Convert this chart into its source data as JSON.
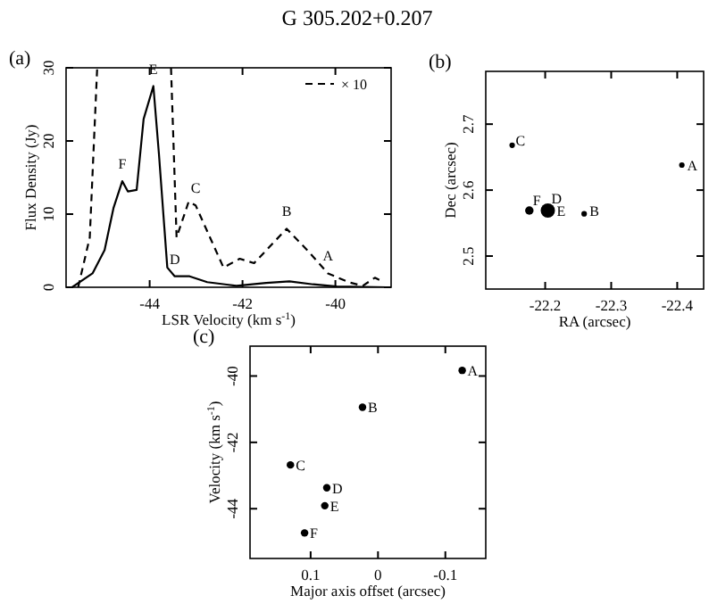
{
  "chart_data": [
    {
      "type": "line",
      "title": "G 305.202+0.207",
      "xlabel": "LSR Velocity (km s$^{-1}$)",
      "ylabel": "Flux Density (Jy)",
      "xlim": [
        -45.8,
        -38.8
      ],
      "ylim": [
        0,
        30
      ],
      "xticks": [
        -44,
        -42,
        -40
      ],
      "yticks": [
        0,
        10,
        20,
        30
      ],
      "legend": "top right",
      "series": [
        {
          "color": "#000000",
          "line_style": "solid",
          "x": [
            -45.67,
            -45.23,
            -44.97,
            -44.78,
            -44.59,
            -44.47,
            -44.28,
            -44.13,
            -43.92,
            -43.8,
            -43.62,
            -43.46,
            -43.14,
            -42.76,
            -42.13,
            -41.49,
            -40.99,
            -40.48,
            -39.97,
            -38.9
          ],
          "values": [
            0,
            1.9,
            5.1,
            10.8,
            14.5,
            13.1,
            13.3,
            23,
            27.5,
            18.2,
            2.7,
            1.5,
            1.5,
            0.7,
            0.2,
            0.6,
            0.8,
            0.4,
            0.1,
            0
          ]
        },
        {
          "name": "× 10",
          "color": "#000000",
          "line_style": "dashed",
          "x": [
            -45.54,
            -45.29,
            -45.13,
            -44.3,
            -43.54,
            -43.42,
            -43.16,
            -43.01,
            -42.7,
            -42.41,
            -42.06,
            -41.75,
            -41.05,
            -40.61,
            -40.16,
            -39.72,
            -39.41,
            -39.15,
            -38.96
          ],
          "values": [
            0,
            6.8,
            30,
            null,
            30,
            6.8,
            11.7,
            11.2,
            6.8,
            2.7,
            3.9,
            3.3,
            8,
            5.1,
            1.9,
            0.7,
            0.2,
            1.3,
            0.7
          ]
        }
      ],
      "annotations": [
        "(a)",
        {
          "text": "F",
          "x": -44.59,
          "y": 14.5
        },
        {
          "text": "E",
          "x": -43.92,
          "y": 27.5
        },
        {
          "text": "D",
          "x": -43.46,
          "y": 1.5
        },
        {
          "text": "C",
          "x": -43.01,
          "y": 11.2
        },
        {
          "text": "B",
          "x": -41.05,
          "y": 8
        },
        {
          "text": "A",
          "x": -40.16,
          "y": 1.9
        }
      ]
    },
    {
      "type": "bubble",
      "xlabel": "RA (arcsec)",
      "ylabel": "Dec (arcsec)",
      "xlim": [
        -22.11,
        -22.44
      ],
      "ylim": [
        2.45,
        2.78
      ],
      "xticks": [
        -22.2,
        -22.3,
        -22.4
      ],
      "yticks": [
        2.5,
        2.6,
        2.7
      ],
      "marker": "circle",
      "series": [
        {
          "color": "#000000",
          "x": [
            -22.407,
            -22.259,
            -22.15,
            null,
            -22.204,
            -22.176
          ],
          "values": [
            2.638,
            2.564,
            2.668,
            null,
            2.569,
            2.569
          ],
          "sizes": [
            0.15,
            0.15,
            0.15,
            null,
            1,
            0.35
          ]
        }
      ],
      "annotations": [
        "(b)",
        {
          "text": "A",
          "x": -22.407,
          "y": 2.638
        },
        {
          "text": "B",
          "x": -22.259,
          "y": 2.564
        },
        {
          "text": "C",
          "x": -22.15,
          "y": 2.668
        },
        "D",
        {
          "text": "E",
          "x": -22.204,
          "y": 2.569
        },
        {
          "text": "F",
          "x": -22.176,
          "y": 2.569
        }
      ]
    },
    {
      "type": "scatter",
      "xlabel": "Major axis offset (arcsec)",
      "ylabel": "Velocity (km s$^{-1}$)",
      "xlim": [
        0.19,
        -0.16
      ],
      "ylim": [
        -45.5,
        -39.1
      ],
      "xticks": [
        0.1,
        0,
        -0.1
      ],
      "yticks": [
        -44,
        -42,
        -40
      ],
      "marker": "circle",
      "series": [
        {
          "color": "#000000",
          "x": [
            -0.125,
            0.023,
            0.13,
            0.076,
            0.079,
            0.109
          ],
          "values": [
            -39.83,
            -40.94,
            -42.68,
            -43.37,
            -43.91,
            -44.73
          ]
        }
      ],
      "annotations": [
        "(c)",
        {
          "text": "A",
          "x": -0.125,
          "y": -39.83
        },
        {
          "text": "B",
          "x": 0.023,
          "y": -40.94
        },
        {
          "text": "C",
          "x": 0.13,
          "y": -42.68
        },
        {
          "text": "D",
          "x": 0.076,
          "y": -43.37
        },
        {
          "text": "E",
          "x": 0.079,
          "y": -43.91
        },
        {
          "text": "F",
          "x": 0.109,
          "y": -44.73
        }
      ]
    }
  ]
}
